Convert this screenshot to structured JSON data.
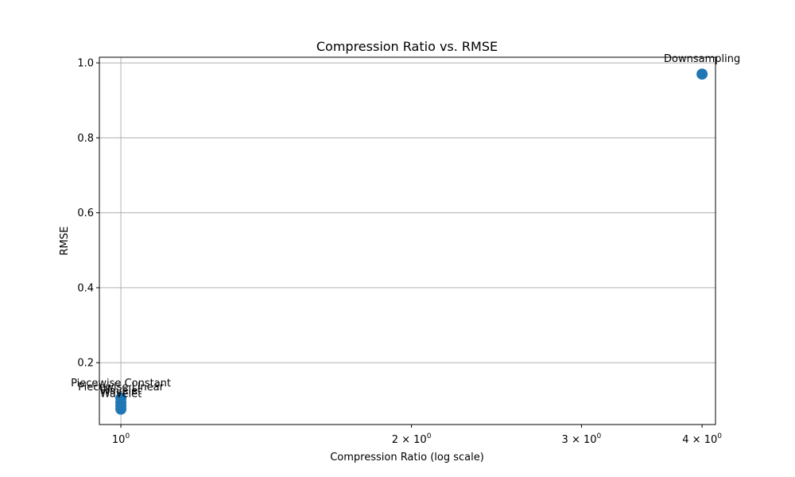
{
  "chart_data": {
    "type": "scatter",
    "title": "Compression Ratio vs. RMSE",
    "xlabel": "Compression Ratio (log scale)",
    "ylabel": "RMSE",
    "x_scale": "log",
    "xlim": [
      0.95,
      4.13
    ],
    "ylim": [
      0.035,
      1.015
    ],
    "grid": true,
    "marker_color": "#1f77b4",
    "x_ticks": [
      {
        "value": 1,
        "base": "10",
        "exp": "0"
      },
      {
        "value": 2,
        "base": "2 × 10",
        "exp": "0"
      },
      {
        "value": 3,
        "base": "3 × 10",
        "exp": "0"
      },
      {
        "value": 4,
        "base": "4 × 10",
        "exp": "0"
      }
    ],
    "y_ticks": [
      {
        "value": 0.2,
        "label": "0.2"
      },
      {
        "value": 0.4,
        "label": "0.4"
      },
      {
        "value": 0.6,
        "label": "0.6"
      },
      {
        "value": 0.8,
        "label": "0.8"
      },
      {
        "value": 1.0,
        "label": "1.0"
      }
    ],
    "points": [
      {
        "label": "Piecewise Constant",
        "x": 1.0,
        "y": 0.105
      },
      {
        "label": "Piecewise Linear",
        "x": 1.0,
        "y": 0.094
      },
      {
        "label": "Wavelet",
        "x": 1.0,
        "y": 0.085
      },
      {
        "label": "Wavelet",
        "x": 1.0,
        "y": 0.076
      },
      {
        "label": "Downsampling",
        "x": 4.0,
        "y": 0.97
      }
    ]
  }
}
